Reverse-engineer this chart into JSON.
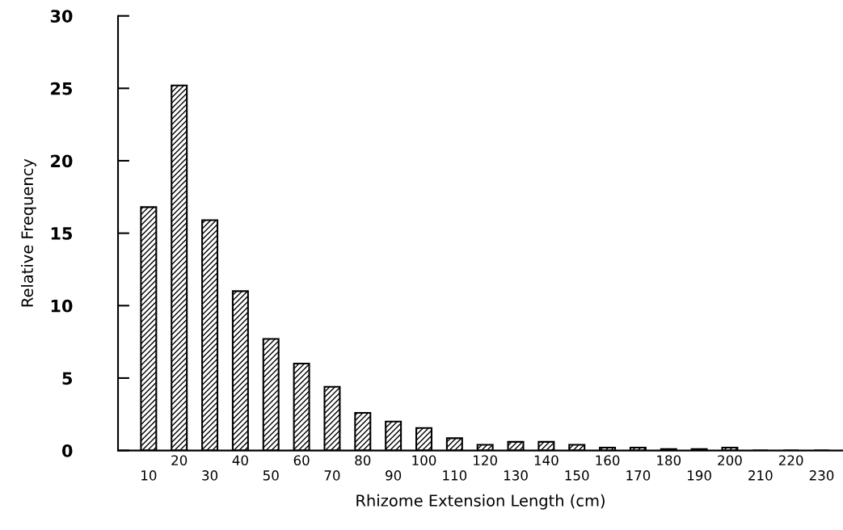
{
  "chart_data": {
    "type": "bar",
    "xlabel": "Rhizome Extension Length (cm)",
    "ylabel": "Relative Frequency",
    "categories": [
      "10",
      "20",
      "30",
      "40",
      "50",
      "60",
      "70",
      "80",
      "90",
      "100",
      "110",
      "120",
      "130",
      "140",
      "150",
      "160",
      "170",
      "180",
      "190",
      "200",
      "210",
      "220",
      "230"
    ],
    "values": [
      16.8,
      25.2,
      15.9,
      11.0,
      7.7,
      6.0,
      4.4,
      2.6,
      2.0,
      1.55,
      0.85,
      0.4,
      0.6,
      0.6,
      0.4,
      0.2,
      0.2,
      0.1,
      0.1,
      0.2,
      0,
      0,
      0
    ],
    "color": "#000000",
    "ylim": [
      0,
      30
    ],
    "yticks": [
      0,
      5,
      10,
      15,
      20,
      25,
      30
    ],
    "grid": false,
    "legend": false
  }
}
